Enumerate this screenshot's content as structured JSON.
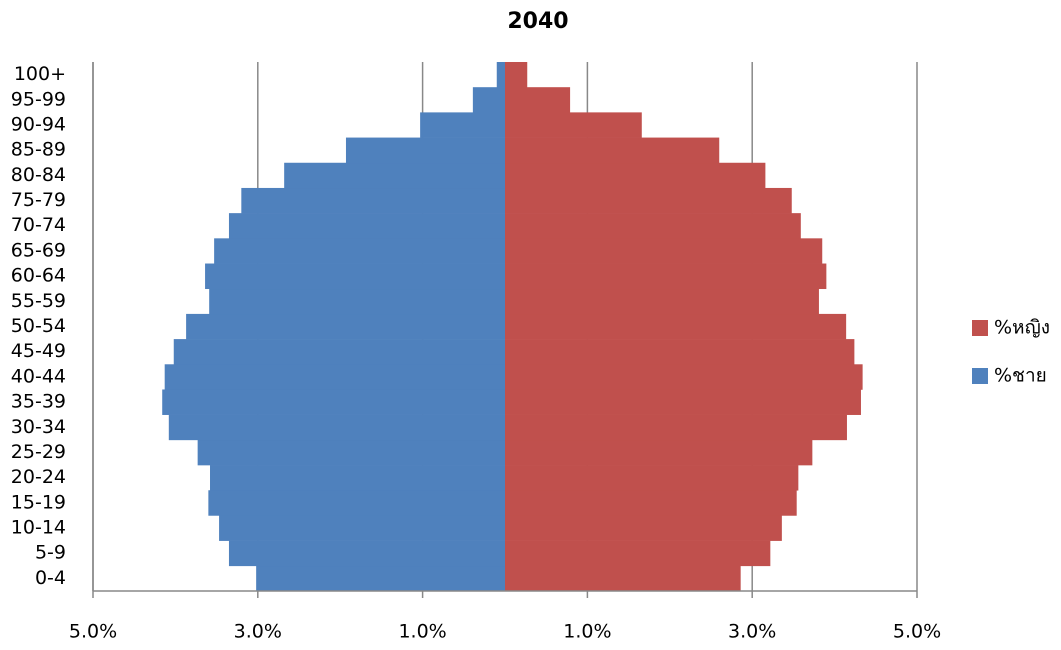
{
  "chart_data": {
    "type": "pyramid",
    "title": "2040",
    "categories": [
      "0-4",
      "5-9",
      "10-14",
      "15-19",
      "20-24",
      "25-29",
      "30-34",
      "35-39",
      "40-44",
      "45-49",
      "50-54",
      "55-59",
      "60-64",
      "65-69",
      "70-74",
      "75-79",
      "80-84",
      "85-89",
      "90-94",
      "95-99",
      "100+"
    ],
    "series": [
      {
        "name": "%หญิง",
        "color": "#c0504d",
        "values": [
          2.86,
          3.22,
          3.36,
          3.54,
          3.56,
          3.73,
          4.15,
          4.32,
          4.34,
          4.24,
          4.14,
          3.81,
          3.9,
          3.85,
          3.59,
          3.48,
          3.16,
          2.6,
          1.66,
          0.79,
          0.27
        ]
      },
      {
        "name": "%ชาย",
        "color": "#4f81bd",
        "values": [
          -3.02,
          -3.35,
          -3.47,
          -3.6,
          -3.58,
          -3.73,
          -4.08,
          -4.16,
          -4.13,
          -4.02,
          -3.87,
          -3.59,
          -3.64,
          -3.53,
          -3.35,
          -3.2,
          -2.68,
          -1.93,
          -1.03,
          -0.39,
          -0.1
        ]
      }
    ],
    "xlim": [
      -5,
      5
    ],
    "xticks": [
      {
        "value": -5,
        "label": "5.0%"
      },
      {
        "value": -3,
        "label": "3.0%"
      },
      {
        "value": -1,
        "label": "1.0%"
      },
      {
        "value": 1,
        "label": "1.0%"
      },
      {
        "value": 3,
        "label": "3.0%"
      },
      {
        "value": 5,
        "label": "5.0%"
      }
    ],
    "grid": true,
    "legend": "right"
  }
}
